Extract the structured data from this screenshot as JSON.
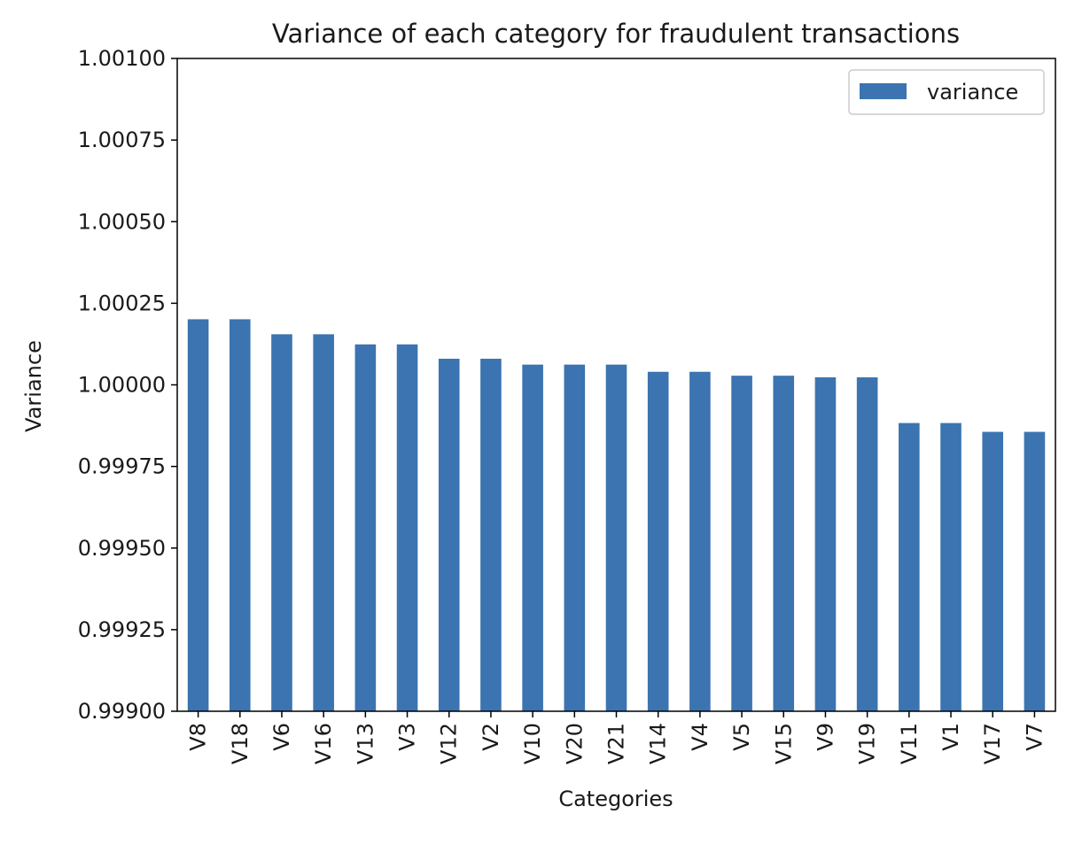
{
  "chart_data": {
    "type": "bar",
    "title": "Variance of each category for fraudulent transactions",
    "xlabel": "Categories",
    "ylabel": "Variance",
    "ylim": [
      0.999,
      1.001
    ],
    "yticks": [
      0.999,
      0.99925,
      0.9995,
      0.99975,
      1.0,
      1.00025,
      1.0005,
      1.00075,
      1.001
    ],
    "ytick_labels": [
      "0.99900",
      "0.99925",
      "0.99950",
      "0.99975",
      "1.00000",
      "1.00025",
      "1.00050",
      "1.00075",
      "1.00100"
    ],
    "categories": [
      "V8",
      "V18",
      "V6",
      "V16",
      "V13",
      "V3",
      "V12",
      "V2",
      "V10",
      "V20",
      "V21",
      "V14",
      "V4",
      "V5",
      "V15",
      "V9",
      "V19",
      "V11",
      "V1",
      "V17",
      "V7"
    ],
    "series": [
      {
        "name": "variance",
        "color": "#3b74b0",
        "values": [
          1.000201,
          1.000201,
          1.000155,
          1.000155,
          1.000124,
          1.000124,
          1.00008,
          1.00008,
          1.000062,
          1.000062,
          1.000062,
          1.00004,
          1.00004,
          1.000028,
          1.000028,
          1.000023,
          1.000023,
          0.999883,
          0.999883,
          0.999856,
          0.999856
        ]
      }
    ],
    "grid": false,
    "legend_position": "upper right"
  }
}
